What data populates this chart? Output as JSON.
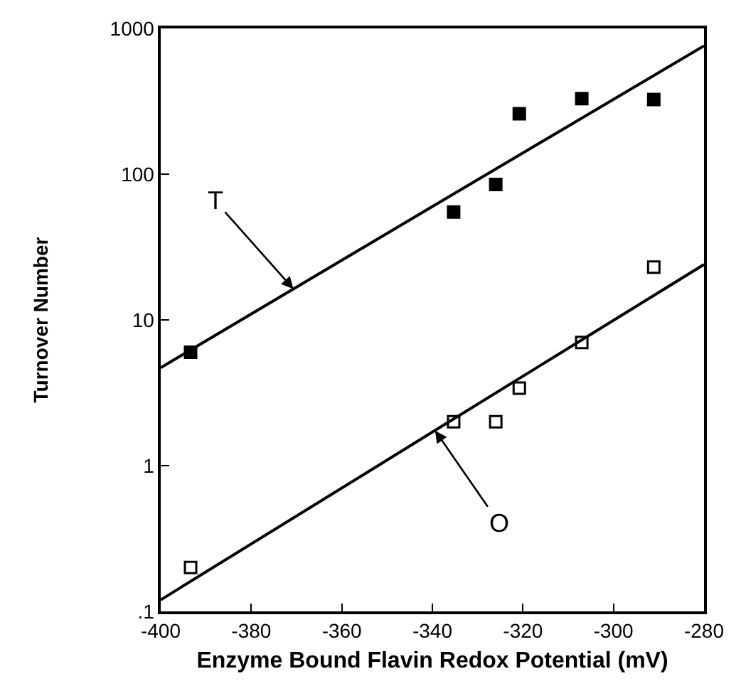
{
  "chart_data": {
    "type": "scatter",
    "xlabel": "Enzyme Bound Flavin Redox Potential (mV)",
    "ylabel": "Turnover Number",
    "log": "y",
    "xlim": [
      -400,
      -280
    ],
    "xticks": [
      -400,
      -380,
      -360,
      -340,
      -320,
      -300,
      -280
    ],
    "ylim": [
      0.1,
      1000
    ],
    "yticks": [
      {
        "value": 0.1,
        "label": ".1"
      },
      1,
      10,
      100,
      1000
    ],
    "legend": false,
    "x": [
      -393.4,
      -335.3,
      -326,
      -320.8,
      -307,
      -291.1
    ],
    "series": [
      {
        "color": "#000000",
        "marker": "square",
        "values": [
          6.0,
          55,
          85,
          260,
          330,
          325
        ]
      },
      {
        "color": "#000000",
        "marker": "square-open",
        "values": [
          0.2,
          2.0,
          2.0,
          3.4,
          7.0,
          23
        ]
      },
      {
        "type": "line",
        "color": "#000000",
        "marker": "none",
        "x": [
          -400,
          -340,
          -280
        ],
        "values": [
          4.7,
          60,
          760
        ]
      },
      {
        "type": "line",
        "color": "#000000",
        "marker": "none",
        "x": [
          -400,
          -340,
          -280
        ],
        "values": [
          0.12,
          1.7,
          24
        ]
      }
    ],
    "annotations": [
      {
        "text": "T",
        "x": -370.7,
        "y": 16.3
      },
      {
        "text": "O",
        "x": -339.4,
        "y": 1.74
      }
    ]
  }
}
